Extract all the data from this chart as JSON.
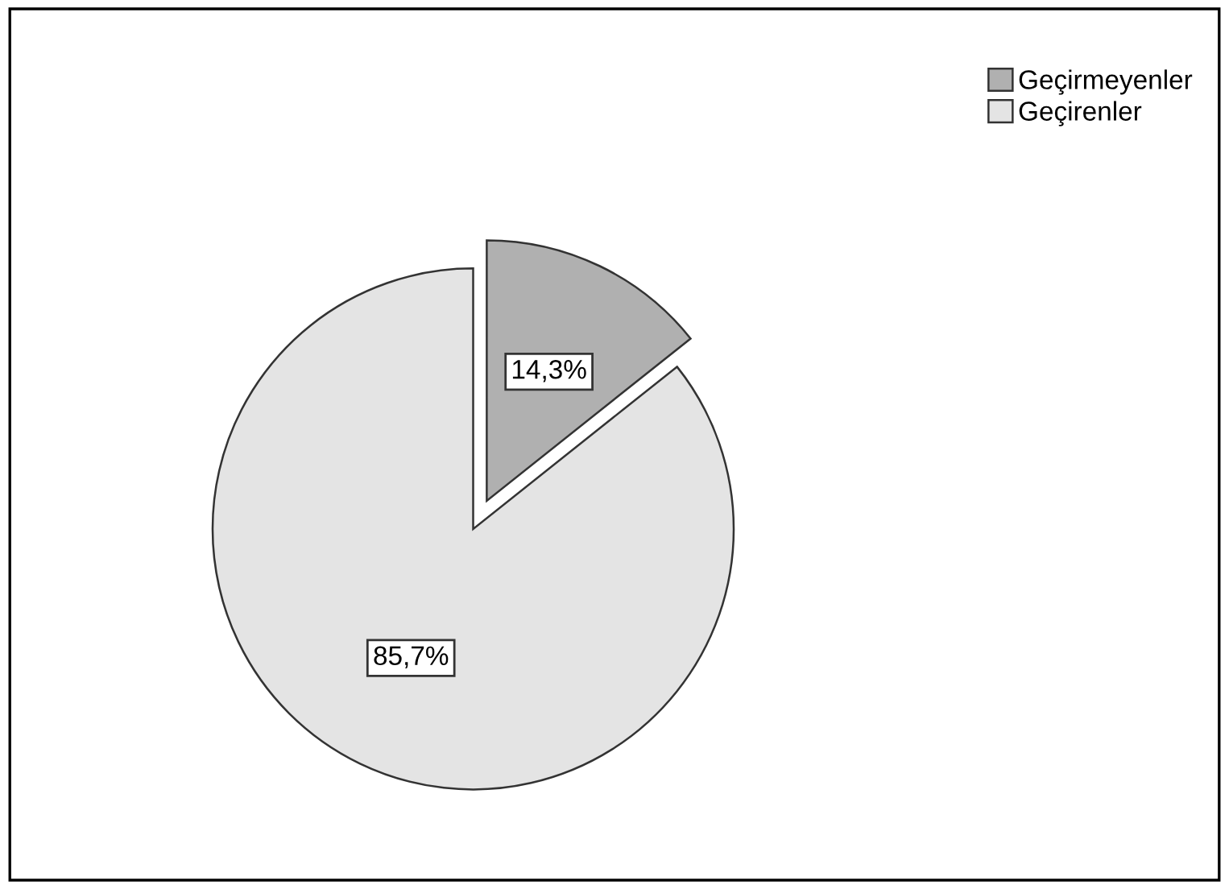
{
  "chart_data": {
    "type": "pie",
    "categories": [
      "Geçirmeyenler",
      "Geçirenler"
    ],
    "values": [
      14.3,
      85.7
    ],
    "colors": [
      "#b0b0b0",
      "#e4e4e4"
    ],
    "value_labels": [
      "14,3%",
      "85,7%"
    ],
    "legend": "top right"
  }
}
